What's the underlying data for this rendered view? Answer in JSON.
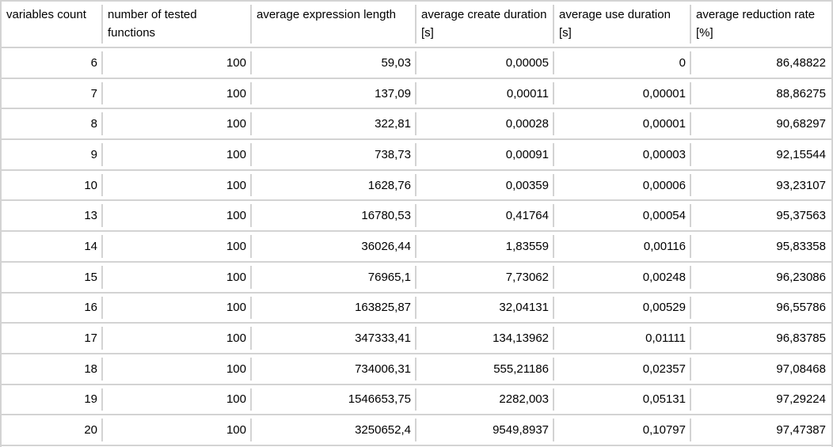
{
  "chart_data": {
    "type": "table",
    "title": "",
    "columns": [
      "variables count",
      "number of tested functions",
      "average expression length",
      "average create duration [s]",
      "average use duration [s]",
      "average reduction rate [%]"
    ],
    "rows": [
      [
        "6",
        "100",
        "59,03",
        "0,00005",
        "0",
        "86,48822"
      ],
      [
        "7",
        "100",
        "137,09",
        "0,00011",
        "0,00001",
        "88,86275"
      ],
      [
        "8",
        "100",
        "322,81",
        "0,00028",
        "0,00001",
        "90,68297"
      ],
      [
        "9",
        "100",
        "738,73",
        "0,00091",
        "0,00003",
        "92,15544"
      ],
      [
        "10",
        "100",
        "1628,76",
        "0,00359",
        "0,00006",
        "93,23107"
      ],
      [
        "13",
        "100",
        "16780,53",
        "0,41764",
        "0,00054",
        "95,37563"
      ],
      [
        "14",
        "100",
        "36026,44",
        "1,83559",
        "0,00116",
        "95,83358"
      ],
      [
        "15",
        "100",
        "76965,1",
        "7,73062",
        "0,00248",
        "96,23086"
      ],
      [
        "16",
        "100",
        "163825,87",
        "32,04131",
        "0,00529",
        "96,55786"
      ],
      [
        "17",
        "100",
        "347333,41",
        "134,13962",
        "0,01111",
        "96,83785"
      ],
      [
        "18",
        "100",
        "734006,31",
        "555,21186",
        "0,02357",
        "97,08468"
      ],
      [
        "19",
        "100",
        "1546653,75",
        "2282,003",
        "0,05131",
        "97,29224"
      ],
      [
        "20",
        "100",
        "3250652,4",
        "9549,8937",
        "0,10797",
        "97,47387"
      ]
    ],
    "layout": {
      "header_rows": 1,
      "number_alignment": "right",
      "header_alignment": "top-left"
    }
  },
  "colors": {
    "grid": "#d3d3d3",
    "background": "#ffffff",
    "text": "#000000"
  }
}
